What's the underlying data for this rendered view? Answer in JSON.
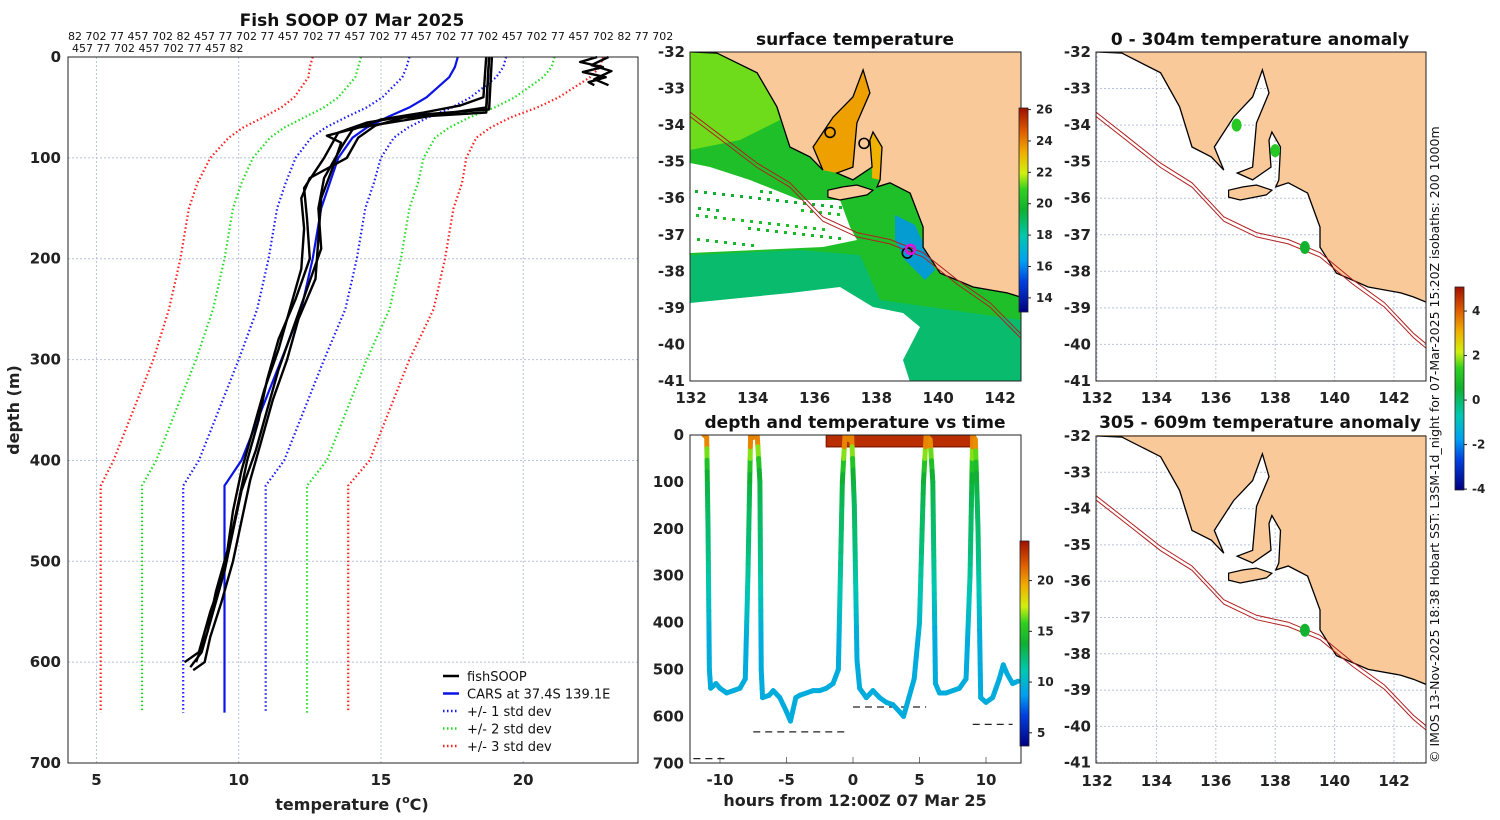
{
  "figure": {
    "copyright": "© IMOS 13-Nov-2025 18:38 Hobart SST: L3SM-1d_night for 07-Mar-2025 15:20Z isobaths: 200  1000m"
  },
  "colors": {
    "land": "#f9c99a",
    "coast": "#000000",
    "isobath": "#b22020",
    "fish": "#000000",
    "cars": "#0a14e6",
    "sd1": "#1a1aff",
    "sd2": "#22dd22",
    "sd3": "#ff2020",
    "marker": "#e010e0"
  },
  "chart_data": [
    {
      "type": "line",
      "title": "Fish SOOP 07 Mar 2025",
      "top_labels": [
        "82 702 77 457 702 82 457 77 702 77 457 702 77 457 702 77 457 702 77 702 457 702 77 457 702 82 77 702",
        "457 77 702 457 702 77 457 82"
      ],
      "xlabel_prefix": "temperature (",
      "xlabel_sup": "o",
      "xlabel_suffix": "C)",
      "ylabel": "depth (m)",
      "xlim": [
        4,
        24
      ],
      "ylim": [
        700,
        0
      ],
      "xticks": [
        5,
        10,
        15,
        20
      ],
      "yticks": [
        0,
        100,
        200,
        300,
        400,
        500,
        600,
        700
      ],
      "grid": true,
      "legend_placement": "bottom-right",
      "legend": [
        "fishSOOP",
        "CARS at 37.4S 139.1E",
        "+/- 1 std dev",
        "+/- 2 std dev",
        "+/- 3 std dev"
      ],
      "cars": {
        "depth": [
          0,
          10,
          20,
          30,
          40,
          50,
          60,
          70,
          80,
          100,
          125,
          150,
          200,
          250,
          300,
          350,
          400,
          425,
          500,
          600,
          650
        ],
        "mean": [
          17.7,
          17.6,
          17.4,
          17.0,
          16.6,
          16.0,
          15.2,
          14.5,
          14.0,
          13.5,
          13.2,
          12.9,
          12.6,
          12.2,
          11.5,
          10.8,
          10.1,
          9.5,
          9.5,
          9.5,
          9.5
        ],
        "std": [
          1.7,
          1.7,
          1.65,
          1.6,
          1.55,
          1.5,
          1.45,
          1.45,
          1.45,
          1.5,
          1.55,
          1.55,
          1.55,
          1.55,
          1.5,
          1.5,
          1.5,
          1.45,
          1.45,
          1.45,
          1.45
        ]
      },
      "fish_profiles": [
        [
          [
            0,
            18.9
          ],
          [
            52,
            18.8
          ],
          [
            58,
            16
          ],
          [
            65,
            14.5
          ],
          [
            75,
            13.5
          ],
          [
            100,
            13.0
          ],
          [
            130,
            12.3
          ],
          [
            160,
            12.4
          ],
          [
            200,
            12.5
          ],
          [
            240,
            12.0
          ],
          [
            280,
            11.4
          ],
          [
            320,
            11.0
          ],
          [
            360,
            10.7
          ],
          [
            400,
            10.3
          ],
          [
            440,
            10.0
          ],
          [
            480,
            9.7
          ],
          [
            520,
            9.4
          ],
          [
            560,
            9.0
          ],
          [
            590,
            8.7
          ],
          [
            605,
            8.3
          ]
        ],
        [
          [
            0,
            18.7
          ],
          [
            40,
            18.6
          ],
          [
            48,
            17.8
          ],
          [
            55,
            16.5
          ],
          [
            62,
            15.0
          ],
          [
            72,
            14.0
          ],
          [
            90,
            13.6
          ],
          [
            120,
            13.0
          ],
          [
            150,
            12.8
          ],
          [
            190,
            12.9
          ],
          [
            230,
            12.4
          ],
          [
            270,
            11.9
          ],
          [
            310,
            11.4
          ],
          [
            350,
            11.0
          ],
          [
            390,
            10.6
          ],
          [
            430,
            10.1
          ],
          [
            470,
            9.8
          ],
          [
            510,
            9.5
          ],
          [
            550,
            9.0
          ],
          [
            590,
            8.6
          ],
          [
            600,
            8.1
          ]
        ],
        [
          [
            0,
            18.8
          ],
          [
            50,
            18.7
          ],
          [
            55,
            17.5
          ],
          [
            62,
            16.0
          ],
          [
            70,
            14.2
          ],
          [
            78,
            13.1
          ],
          [
            85,
            13.6
          ],
          [
            110,
            13.3
          ],
          [
            140,
            12.9
          ],
          [
            180,
            12.8
          ],
          [
            220,
            12.7
          ],
          [
            260,
            12.1
          ],
          [
            300,
            11.7
          ],
          [
            340,
            11.2
          ],
          [
            380,
            10.8
          ],
          [
            420,
            10.4
          ],
          [
            460,
            10.1
          ],
          [
            500,
            9.8
          ],
          [
            540,
            9.4
          ],
          [
            575,
            9.0
          ],
          [
            600,
            8.8
          ],
          [
            608,
            8.4
          ]
        ],
        [
          [
            0,
            18.8
          ],
          [
            55,
            18.7
          ],
          [
            60,
            15.8
          ],
          [
            68,
            14.8
          ],
          [
            80,
            14.2
          ],
          [
            100,
            13.8
          ],
          [
            120,
            12.5
          ],
          [
            140,
            12.2
          ],
          [
            170,
            12.3
          ],
          [
            210,
            12.2
          ],
          [
            250,
            11.8
          ],
          [
            290,
            11.4
          ],
          [
            330,
            10.9
          ],
          [
            370,
            10.5
          ],
          [
            410,
            10.1
          ],
          [
            450,
            9.8
          ],
          [
            490,
            9.6
          ],
          [
            530,
            9.2
          ],
          [
            570,
            8.9
          ],
          [
            600,
            8.5
          ]
        ],
        [
          [
            0,
            22.6
          ],
          [
            5,
            22.0
          ],
          [
            10,
            22.8
          ],
          [
            15,
            22.1
          ],
          [
            20,
            22.9
          ],
          [
            25,
            22.3
          ],
          [
            28,
            22.5
          ]
        ],
        [
          [
            0,
            23.0
          ],
          [
            8,
            22.4
          ],
          [
            14,
            23.1
          ],
          [
            22,
            22.5
          ],
          [
            28,
            23.0
          ]
        ]
      ]
    },
    {
      "type": "heatmap",
      "title": "surface temperature",
      "lon_ticks": [
        132,
        134,
        136,
        138,
        140,
        142
      ],
      "lat_ticks": [
        -32,
        -33,
        -34,
        -35,
        -36,
        -37,
        -38,
        -39,
        -40,
        -41
      ],
      "colorbar_ticks": [
        14,
        16,
        18,
        20,
        22,
        24,
        26
      ],
      "clim": [
        13.1,
        26.1
      ],
      "profile_location": [
        139.1,
        -37.4
      ],
      "fish_tracks": [
        [
          136.5,
          -34.2
        ],
        [
          137.6,
          -34.5
        ],
        [
          139.0,
          -37.5
        ]
      ]
    },
    {
      "type": "line",
      "title": "depth and temperature vs time",
      "xlabel": "hours from 12:00Z 07 Mar 25",
      "xlim": [
        -12.3,
        12.6
      ],
      "ylim": [
        700,
        0
      ],
      "xticks": [
        -10,
        -5,
        0,
        5,
        10
      ],
      "yticks": [
        0,
        100,
        200,
        300,
        400,
        500,
        600,
        700
      ],
      "colorbar_ticks": [
        5,
        10,
        15,
        20
      ],
      "clim": [
        3.7,
        23.9
      ],
      "track": [
        [
          -11.2,
          0
        ],
        [
          -11.0,
          5
        ],
        [
          -10.9,
          200
        ],
        [
          -10.8,
          500
        ],
        [
          -10.7,
          540
        ],
        [
          -10.3,
          530
        ],
        [
          -10,
          540
        ],
        [
          -9.5,
          550
        ],
        [
          -9,
          545
        ],
        [
          -8.5,
          540
        ],
        [
          -8.1,
          520
        ],
        [
          -7.9,
          300
        ],
        [
          -7.7,
          0
        ],
        [
          -7.5,
          5
        ],
        [
          -7.2,
          0
        ],
        [
          -7.0,
          100
        ],
        [
          -6.9,
          500
        ],
        [
          -6.8,
          560
        ],
        [
          -6.3,
          555
        ],
        [
          -6,
          545
        ],
        [
          -5.5,
          560
        ],
        [
          -5,
          590
        ],
        [
          -4.7,
          610
        ],
        [
          -4.3,
          560
        ],
        [
          -4,
          555
        ],
        [
          -3.5,
          550
        ],
        [
          -3,
          545
        ],
        [
          -2.5,
          545
        ],
        [
          -2,
          540
        ],
        [
          -1.5,
          530
        ],
        [
          -1.1,
          500
        ],
        [
          -0.8,
          100
        ],
        [
          -0.6,
          0
        ],
        [
          -0.3,
          10
        ],
        [
          -0.1,
          0
        ],
        [
          0.1,
          150
        ],
        [
          0.3,
          480
        ],
        [
          0.5,
          540
        ],
        [
          1,
          560
        ],
        [
          1.5,
          545
        ],
        [
          2,
          560
        ],
        [
          2.5,
          570
        ],
        [
          3,
          575
        ],
        [
          3.5,
          590
        ],
        [
          3.8,
          600
        ],
        [
          4.2,
          560
        ],
        [
          4.6,
          520
        ],
        [
          5.0,
          400
        ],
        [
          5.3,
          100
        ],
        [
          5.5,
          0
        ],
        [
          5.8,
          10
        ],
        [
          6.0,
          100
        ],
        [
          6.2,
          530
        ],
        [
          6.5,
          550
        ],
        [
          7,
          550
        ],
        [
          7.5,
          545
        ],
        [
          8,
          540
        ],
        [
          8.5,
          520
        ],
        [
          8.8,
          300
        ],
        [
          9.0,
          0
        ],
        [
          9.2,
          10
        ],
        [
          9.4,
          200
        ],
        [
          9.6,
          560
        ],
        [
          10,
          570
        ],
        [
          10.5,
          560
        ],
        [
          11,
          520
        ],
        [
          11.3,
          490
        ],
        [
          11.6,
          510
        ],
        [
          12,
          530
        ],
        [
          12.4,
          525
        ]
      ],
      "bottom_depth": [
        [
          -12,
          -9.5,
          690
        ],
        [
          -7.5,
          -0.5,
          633
        ],
        [
          0,
          5.5,
          580
        ],
        [
          9,
          12,
          617
        ]
      ],
      "surface_block": {
        "hours": [
          -2,
          9
        ],
        "depth": [
          0,
          25
        ],
        "temp": 23
      }
    },
    {
      "type": "scatter",
      "title": "0 - 304m temperature anomaly",
      "lon_ticks": [
        132,
        134,
        136,
        138,
        140,
        142
      ],
      "lat_ticks": [
        -32,
        -33,
        -34,
        -35,
        -36,
        -37,
        -38,
        -39,
        -40,
        -41
      ],
      "colorbar_ticks": [
        -4,
        -2,
        0,
        2,
        4
      ],
      "clim": [
        -4.04,
        5.08
      ],
      "points": [
        [
          136.7,
          -34.0,
          1.2
        ],
        [
          138.0,
          -34.7,
          1.2
        ],
        [
          139.0,
          -37.35,
          0.6
        ]
      ]
    },
    {
      "type": "scatter",
      "title": "305 - 609m temperature anomaly",
      "lon_ticks": [
        132,
        134,
        136,
        138,
        140,
        142
      ],
      "lat_ticks": [
        -32,
        -33,
        -34,
        -35,
        -36,
        -37,
        -38,
        -39,
        -40,
        -41
      ],
      "points": [
        [
          139.0,
          -37.35,
          0.6
        ]
      ]
    }
  ]
}
